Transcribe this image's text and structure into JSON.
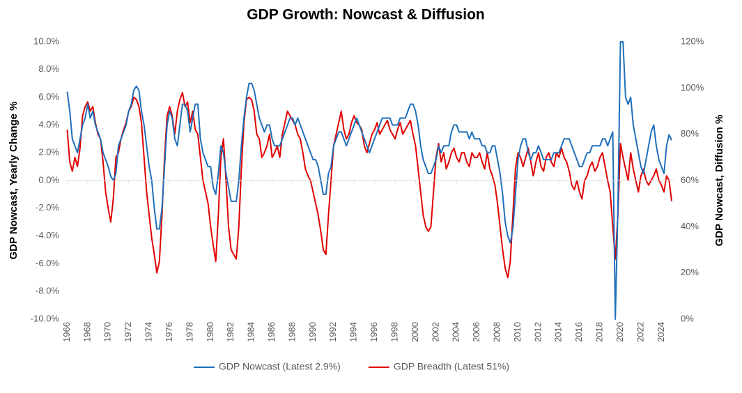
{
  "chart_data": {
    "type": "line",
    "title": "GDP Growth: Nowcast & Diffusion",
    "y_label": "GDP Nowcast, Yearly Change %",
    "y2_label": "GDP Nowcast, Diffusion %",
    "xlim": [
      1965.9,
      2025.2
    ],
    "xticks": [
      1966,
      1968,
      1970,
      1972,
      1974,
      1976,
      1978,
      1980,
      1982,
      1984,
      1986,
      1988,
      1990,
      1992,
      1994,
      1996,
      1998,
      2000,
      2002,
      2004,
      2006,
      2008,
      2010,
      2012,
      2014,
      2016,
      2018,
      2020,
      2022,
      2024
    ],
    "ylim": [
      -10,
      10
    ],
    "yticks": [
      {
        "value": -10,
        "label": "-10.0%"
      },
      {
        "value": -8,
        "label": "-8.0%"
      },
      {
        "value": -6,
        "label": "-6.0%"
      },
      {
        "value": -4,
        "label": "-4.0%"
      },
      {
        "value": -2,
        "label": "-2.0%"
      },
      {
        "value": 0,
        "label": "0.0%"
      },
      {
        "value": 2,
        "label": "2.0%"
      },
      {
        "value": 4,
        "label": "4.0%"
      },
      {
        "value": 6,
        "label": "6.0%"
      },
      {
        "value": 8,
        "label": "8.0%"
      },
      {
        "value": 10,
        "label": "10.0%"
      }
    ],
    "y2lim": [
      0,
      120
    ],
    "y2ticks": [
      {
        "value": 0,
        "label": "0%"
      },
      {
        "value": 20,
        "label": "20%"
      },
      {
        "value": 40,
        "label": "40%"
      },
      {
        "value": 60,
        "label": "60%"
      },
      {
        "value": 80,
        "label": "80%"
      },
      {
        "value": 100,
        "label": "100%"
      },
      {
        "value": 120,
        "label": "120%"
      }
    ],
    "legend": "bottom",
    "x": [
      1966,
      1966.25,
      1966.5,
      1966.75,
      1967,
      1967.25,
      1967.5,
      1967.75,
      1968,
      1968.25,
      1968.5,
      1968.75,
      1969,
      1969.25,
      1969.5,
      1969.75,
      1970,
      1970.25,
      1970.5,
      1970.75,
      1971,
      1971.25,
      1971.5,
      1971.75,
      1972,
      1972.25,
      1972.5,
      1972.75,
      1973,
      1973.25,
      1973.5,
      1973.75,
      1974,
      1974.25,
      1974.5,
      1974.75,
      1975,
      1975.25,
      1975.5,
      1975.75,
      1976,
      1976.25,
      1976.5,
      1976.75,
      1977,
      1977.25,
      1977.5,
      1977.75,
      1978,
      1978.25,
      1978.5,
      1978.75,
      1979,
      1979.25,
      1979.5,
      1979.75,
      1980,
      1980.25,
      1980.5,
      1980.75,
      1981,
      1981.25,
      1981.5,
      1981.75,
      1982,
      1982.25,
      1982.5,
      1982.75,
      1983,
      1983.25,
      1983.5,
      1983.75,
      1984,
      1984.25,
      1984.5,
      1984.75,
      1985,
      1985.25,
      1985.5,
      1985.75,
      1986,
      1986.25,
      1986.5,
      1986.75,
      1987,
      1987.25,
      1987.5,
      1987.75,
      1988,
      1988.25,
      1988.5,
      1988.75,
      1989,
      1989.25,
      1989.5,
      1989.75,
      1990,
      1990.25,
      1990.5,
      1990.75,
      1991,
      1991.25,
      1991.5,
      1991.75,
      1992,
      1992.25,
      1992.5,
      1992.75,
      1993,
      1993.25,
      1993.5,
      1993.75,
      1994,
      1994.25,
      1994.5,
      1994.75,
      1995,
      1995.25,
      1995.5,
      1995.75,
      1996,
      1996.25,
      1996.5,
      1996.75,
      1997,
      1997.25,
      1997.5,
      1997.75,
      1998,
      1998.25,
      1998.5,
      1998.75,
      1999,
      1999.25,
      1999.5,
      1999.75,
      2000,
      2000.25,
      2000.5,
      2000.75,
      2001,
      2001.25,
      2001.5,
      2001.75,
      2002,
      2002.25,
      2002.5,
      2002.75,
      2003,
      2003.25,
      2003.5,
      2003.75,
      2004,
      2004.25,
      2004.5,
      2004.75,
      2005,
      2005.25,
      2005.5,
      2005.75,
      2006,
      2006.25,
      2006.5,
      2006.75,
      2007,
      2007.25,
      2007.5,
      2007.75,
      2008,
      2008.25,
      2008.5,
      2008.75,
      2009,
      2009.25,
      2009.5,
      2009.75,
      2010,
      2010.25,
      2010.5,
      2010.75,
      2011,
      2011.25,
      2011.5,
      2011.75,
      2012,
      2012.25,
      2012.5,
      2012.75,
      2013,
      2013.25,
      2013.5,
      2013.75,
      2014,
      2014.25,
      2014.5,
      2014.75,
      2015,
      2015.25,
      2015.5,
      2015.75,
      2016,
      2016.25,
      2016.5,
      2016.75,
      2017,
      2017.25,
      2017.5,
      2017.75,
      2018,
      2018.25,
      2018.5,
      2018.75,
      2019,
      2019.25,
      2019.5,
      2019.75,
      2020,
      2020.25,
      2020.5,
      2020.75,
      2021,
      2021.25,
      2021.5,
      2021.75,
      2022,
      2022.25,
      2022.5,
      2022.75,
      2023,
      2023.25,
      2023.5,
      2023.75,
      2024,
      2024.25,
      2024.5,
      2024.75,
      2025
    ],
    "series": [
      {
        "name": "GDP Nowcast (Latest 2.9%)",
        "color": "#1f6fba",
        "axis": "y",
        "values": [
          6.4,
          5.0,
          3.0,
          2.5,
          2.0,
          3.0,
          4.0,
          4.5,
          5.5,
          4.5,
          5.0,
          4.0,
          3.5,
          3.0,
          2.0,
          1.5,
          1.0,
          0.3,
          0.0,
          0.5,
          2.5,
          3.0,
          3.5,
          4.0,
          5.0,
          5.5,
          6.5,
          6.8,
          6.5,
          5.0,
          4.0,
          2.5,
          1.0,
          0.0,
          -2.0,
          -3.5,
          -3.5,
          -2.0,
          1.0,
          4.0,
          5.0,
          4.5,
          3.0,
          2.5,
          4.0,
          5.5,
          5.5,
          5.0,
          3.5,
          4.5,
          5.5,
          5.5,
          3.0,
          2.0,
          1.5,
          1.0,
          1.0,
          -0.5,
          -1.0,
          0.5,
          2.5,
          2.0,
          0.5,
          -0.5,
          -1.5,
          -1.5,
          -1.5,
          0.0,
          2.5,
          4.5,
          6.0,
          7.0,
          7.0,
          6.5,
          5.5,
          4.5,
          4.0,
          3.5,
          4.0,
          4.0,
          3.0,
          2.5,
          2.5,
          2.5,
          3.0,
          3.5,
          4.0,
          4.5,
          4.5,
          4.0,
          4.5,
          4.0,
          3.5,
          3.0,
          2.5,
          2.0,
          1.5,
          1.5,
          1.0,
          0.0,
          -1.0,
          -1.0,
          0.5,
          1.0,
          2.5,
          3.0,
          3.5,
          3.5,
          3.0,
          2.5,
          3.0,
          3.5,
          4.0,
          4.5,
          4.0,
          3.5,
          3.0,
          2.5,
          2.0,
          2.5,
          3.0,
          3.5,
          4.0,
          4.5,
          4.5,
          4.5,
          4.5,
          4.0,
          4.0,
          4.0,
          4.5,
          4.5,
          4.5,
          5.0,
          5.5,
          5.5,
          5.0,
          4.0,
          2.5,
          1.5,
          1.0,
          0.5,
          0.5,
          1.0,
          1.5,
          2.5,
          2.0,
          2.5,
          2.5,
          2.5,
          3.5,
          4.0,
          4.0,
          3.5,
          3.5,
          3.5,
          3.5,
          3.0,
          3.5,
          3.0,
          3.0,
          3.0,
          2.5,
          2.5,
          2.0,
          2.0,
          2.5,
          2.5,
          1.5,
          0.5,
          -1.0,
          -3.0,
          -4.0,
          -4.5,
          -3.5,
          -1.0,
          1.5,
          2.5,
          3.0,
          3.0,
          2.0,
          1.5,
          2.0,
          2.0,
          2.5,
          2.0,
          1.5,
          1.5,
          1.5,
          1.5,
          2.0,
          2.0,
          2.0,
          2.5,
          3.0,
          3.0,
          3.0,
          2.5,
          2.0,
          1.5,
          1.0,
          1.0,
          1.5,
          2.0,
          2.0,
          2.5,
          2.5,
          2.5,
          2.5,
          3.0,
          3.0,
          2.5,
          3.0,
          3.5,
          -10.0,
          -2.0,
          10.0,
          10.0,
          6.0,
          5.5,
          6.0,
          4.0,
          3.0,
          2.0,
          1.0,
          0.5,
          1.5,
          2.5,
          3.5,
          4.0,
          2.5,
          1.5,
          1.0,
          0.5,
          2.5,
          3.3,
          2.9
        ]
      },
      {
        "name": "GDP Breadth (Latest 51%)",
        "color": "#e00000",
        "axis": "y2",
        "values": [
          82,
          68,
          64,
          70,
          66,
          74,
          88,
          92,
          94,
          90,
          92,
          85,
          80,
          78,
          68,
          55,
          48,
          42,
          52,
          70,
          72,
          78,
          82,
          85,
          90,
          92,
          96,
          95,
          92,
          85,
          70,
          55,
          45,
          35,
          28,
          20,
          25,
          45,
          70,
          88,
          92,
          88,
          80,
          90,
          95,
          98,
          92,
          94,
          85,
          90,
          82,
          80,
          70,
          60,
          55,
          50,
          40,
          32,
          25,
          45,
          70,
          78,
          60,
          40,
          30,
          28,
          26,
          40,
          65,
          85,
          95,
          96,
          95,
          90,
          80,
          78,
          70,
          72,
          75,
          80,
          70,
          72,
          75,
          70,
          80,
          85,
          90,
          88,
          86,
          84,
          80,
          78,
          72,
          65,
          62,
          60,
          55,
          50,
          45,
          38,
          30,
          28,
          45,
          60,
          75,
          80,
          85,
          90,
          82,
          78,
          80,
          85,
          88,
          85,
          84,
          82,
          75,
          72,
          76,
          80,
          82,
          85,
          80,
          82,
          84,
          86,
          82,
          80,
          78,
          82,
          85,
          80,
          82,
          84,
          86,
          80,
          75,
          65,
          55,
          45,
          40,
          38,
          40,
          55,
          70,
          76,
          68,
          72,
          65,
          68,
          72,
          74,
          70,
          68,
          72,
          72,
          68,
          66,
          72,
          70,
          70,
          72,
          68,
          65,
          72,
          65,
          62,
          58,
          50,
          40,
          30,
          22,
          18,
          25,
          45,
          65,
          72,
          70,
          66,
          70,
          74,
          68,
          62,
          68,
          72,
          66,
          64,
          70,
          72,
          68,
          66,
          72,
          70,
          74,
          70,
          68,
          64,
          58,
          56,
          60,
          55,
          52,
          60,
          62,
          66,
          68,
          64,
          66,
          70,
          72,
          66,
          60,
          55,
          40,
          26,
          45,
          76,
          70,
          65,
          60,
          72,
          65,
          60,
          55,
          62,
          65,
          60,
          58,
          60,
          62,
          65,
          60,
          58,
          55,
          62,
          60,
          51
        ]
      }
    ]
  }
}
